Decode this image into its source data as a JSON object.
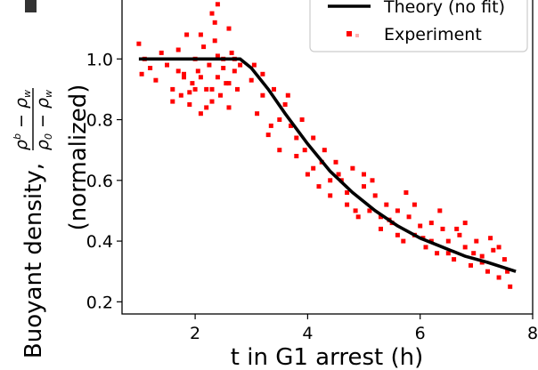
{
  "chart_data": {
    "type": "scatter",
    "xlabel": "t in G1 arrest (h)",
    "ylabel_main": "Buoyant density,",
    "ylabel_formula": "ρ^b − ρ_w over ρ_0 − ρ_w",
    "ylabel_sub": "(normalized)",
    "xlim": [
      0.7,
      8.0
    ],
    "ylim": [
      0.16,
      1.2
    ],
    "x_ticks": [
      "2",
      "4",
      "6",
      "8"
    ],
    "y_ticks": [
      "0.2",
      "0.4",
      "0.6",
      "0.8",
      "1.0"
    ],
    "grid": false,
    "legend_position": "top-right",
    "colors": {
      "theory": "#000000",
      "experiment": "#ff0000"
    },
    "series": [
      {
        "name": "Theory (no fit)",
        "kind": "line",
        "x": [
          1.0,
          1.5,
          2.0,
          2.5,
          2.8,
          3.0,
          3.3,
          3.6,
          4.0,
          4.4,
          4.8,
          5.2,
          5.6,
          6.0,
          6.4,
          6.8,
          7.2,
          7.7
        ],
        "y": [
          1.0,
          1.0,
          1.0,
          1.0,
          1.0,
          0.97,
          0.9,
          0.82,
          0.72,
          0.63,
          0.56,
          0.5,
          0.45,
          0.41,
          0.38,
          0.35,
          0.33,
          0.3
        ]
      },
      {
        "name": "Experiment",
        "kind": "scatter",
        "x": [
          1.0,
          1.05,
          1.1,
          1.2,
          1.3,
          1.4,
          1.5,
          1.6,
          1.7,
          1.75,
          1.8,
          1.85,
          1.9,
          1.95,
          2.0,
          2.05,
          2.1,
          2.15,
          2.2,
          2.25,
          2.3,
          2.35,
          2.4,
          2.45,
          2.5,
          2.55,
          2.6,
          2.65,
          2.7,
          2.75,
          2.8,
          2.3,
          2.35,
          2.4,
          2.6,
          2.1,
          3.0,
          3.1,
          3.2,
          3.3,
          3.4,
          3.5,
          3.6,
          3.7,
          3.8,
          3.9,
          4.0,
          4.1,
          4.2,
          4.3,
          4.4,
          4.5,
          4.6,
          4.7,
          4.8,
          4.9,
          5.0,
          5.1,
          5.2,
          5.3,
          5.4,
          5.5,
          5.6,
          5.7,
          5.8,
          5.9,
          6.0,
          6.1,
          6.2,
          6.3,
          6.4,
          6.5,
          6.6,
          6.7,
          6.8,
          6.9,
          7.0,
          7.1,
          7.2,
          7.3,
          7.4,
          7.5,
          7.6,
          3.2,
          3.5,
          3.8,
          4.1,
          4.4,
          4.7,
          5.0,
          5.3,
          5.6,
          5.9,
          6.2,
          6.5,
          6.8,
          7.1,
          7.4,
          3.05,
          3.35,
          3.65,
          3.95,
          4.25,
          4.55,
          4.85,
          5.15,
          5.45,
          5.75,
          6.05,
          6.35,
          6.65,
          6.95,
          7.25,
          7.55,
          1.6,
          1.8,
          2.0,
          2.2,
          2.4,
          2.6,
          1.7,
          1.9,
          2.1,
          2.3,
          2.5,
          2.7
        ],
        "y": [
          1.05,
          0.95,
          1.0,
          0.97,
          0.93,
          1.02,
          0.98,
          0.9,
          1.03,
          0.88,
          0.95,
          1.08,
          0.85,
          0.92,
          1.0,
          0.96,
          0.82,
          1.04,
          0.9,
          0.98,
          0.86,
          1.06,
          0.94,
          0.88,
          1.0,
          0.92,
          0.84,
          1.02,
          0.96,
          0.9,
          0.98,
          1.15,
          1.12,
          1.18,
          1.1,
          1.08,
          0.93,
          0.82,
          0.95,
          0.75,
          0.9,
          0.7,
          0.85,
          0.78,
          0.68,
          0.8,
          0.62,
          0.74,
          0.58,
          0.7,
          0.55,
          0.66,
          0.6,
          0.52,
          0.64,
          0.48,
          0.58,
          0.5,
          0.55,
          0.44,
          0.52,
          0.46,
          0.5,
          0.4,
          0.48,
          0.42,
          0.45,
          0.38,
          0.46,
          0.36,
          0.44,
          0.4,
          0.34,
          0.42,
          0.38,
          0.32,
          0.4,
          0.35,
          0.3,
          0.37,
          0.28,
          0.34,
          0.25,
          0.88,
          0.8,
          0.74,
          0.64,
          0.6,
          0.56,
          0.62,
          0.48,
          0.42,
          0.52,
          0.4,
          0.36,
          0.46,
          0.33,
          0.38,
          0.98,
          0.78,
          0.88,
          0.7,
          0.66,
          0.62,
          0.5,
          0.6,
          0.47,
          0.56,
          0.41,
          0.5,
          0.44,
          0.36,
          0.41,
          0.3,
          0.86,
          0.94,
          0.9,
          0.84,
          1.01,
          0.92,
          0.96,
          0.89,
          0.94,
          0.9,
          0.97,
          1.0
        ]
      }
    ]
  }
}
